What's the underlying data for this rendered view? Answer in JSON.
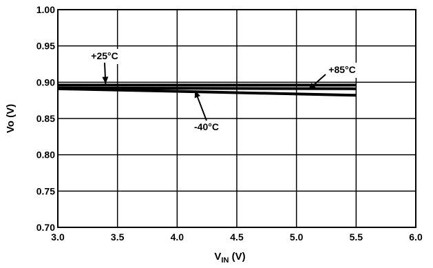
{
  "chart_data": {
    "type": "line",
    "title": "",
    "xlabel": "V",
    "xlabel_sub": "IN",
    "xlabel_suffix": " (V)",
    "ylabel": "Vo (V)",
    "xlim": [
      3.0,
      6.0
    ],
    "ylim": [
      0.7,
      1.0
    ],
    "xticks": [
      3.0,
      3.5,
      4.0,
      4.5,
      5.0,
      5.5,
      6.0
    ],
    "xtick_labels": [
      "3.0",
      "3.5",
      "4.0",
      "4.5",
      "5.0",
      "5.5",
      "6.0"
    ],
    "yticks": [
      0.7,
      0.75,
      0.8,
      0.85,
      0.9,
      0.95,
      1.0
    ],
    "ytick_labels": [
      "0.70",
      "0.75",
      "0.80",
      "0.85",
      "0.90",
      "0.95",
      "1.00"
    ],
    "grid": true,
    "series": [
      {
        "name": "+25°C",
        "x": [
          3.0,
          5.5
        ],
        "y": [
          0.896,
          0.896
        ]
      },
      {
        "name": "+85°C",
        "x": [
          3.0,
          5.5
        ],
        "y": [
          0.892,
          0.891
        ]
      },
      {
        "name": "-40°C",
        "x": [
          3.0,
          5.5
        ],
        "y": [
          0.891,
          0.882
        ]
      }
    ],
    "annotations": [
      {
        "text": "+25°C",
        "series": "+25°C"
      },
      {
        "text": "+85°C",
        "series": "+85°C"
      },
      {
        "text": "-40°C",
        "series": "-40°C"
      }
    ]
  }
}
